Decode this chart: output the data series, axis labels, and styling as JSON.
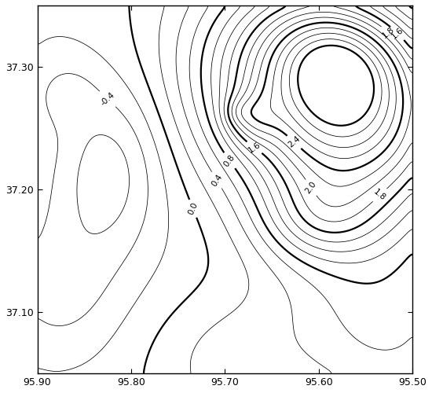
{
  "x_range": [
    95.9,
    95.5
  ],
  "y_range": [
    37.05,
    37.35
  ],
  "x_ticks": [
    95.9,
    95.8,
    95.7,
    95.6,
    95.5
  ],
  "y_ticks": [
    37.1,
    37.2,
    37.3
  ],
  "contour_interval": 0.2,
  "contour_min": -0.6,
  "contour_max": 3.2,
  "thick_every": 0.8,
  "line_color": "black",
  "background_color": "white",
  "figsize": [
    5.5,
    5.0
  ],
  "dpi": 100,
  "label_levels": [
    -0.4,
    0.0,
    0.4,
    0.8,
    1.6,
    1.8,
    2.0,
    2.4
  ],
  "thin_lw": 0.55,
  "thick_lw": 1.6
}
